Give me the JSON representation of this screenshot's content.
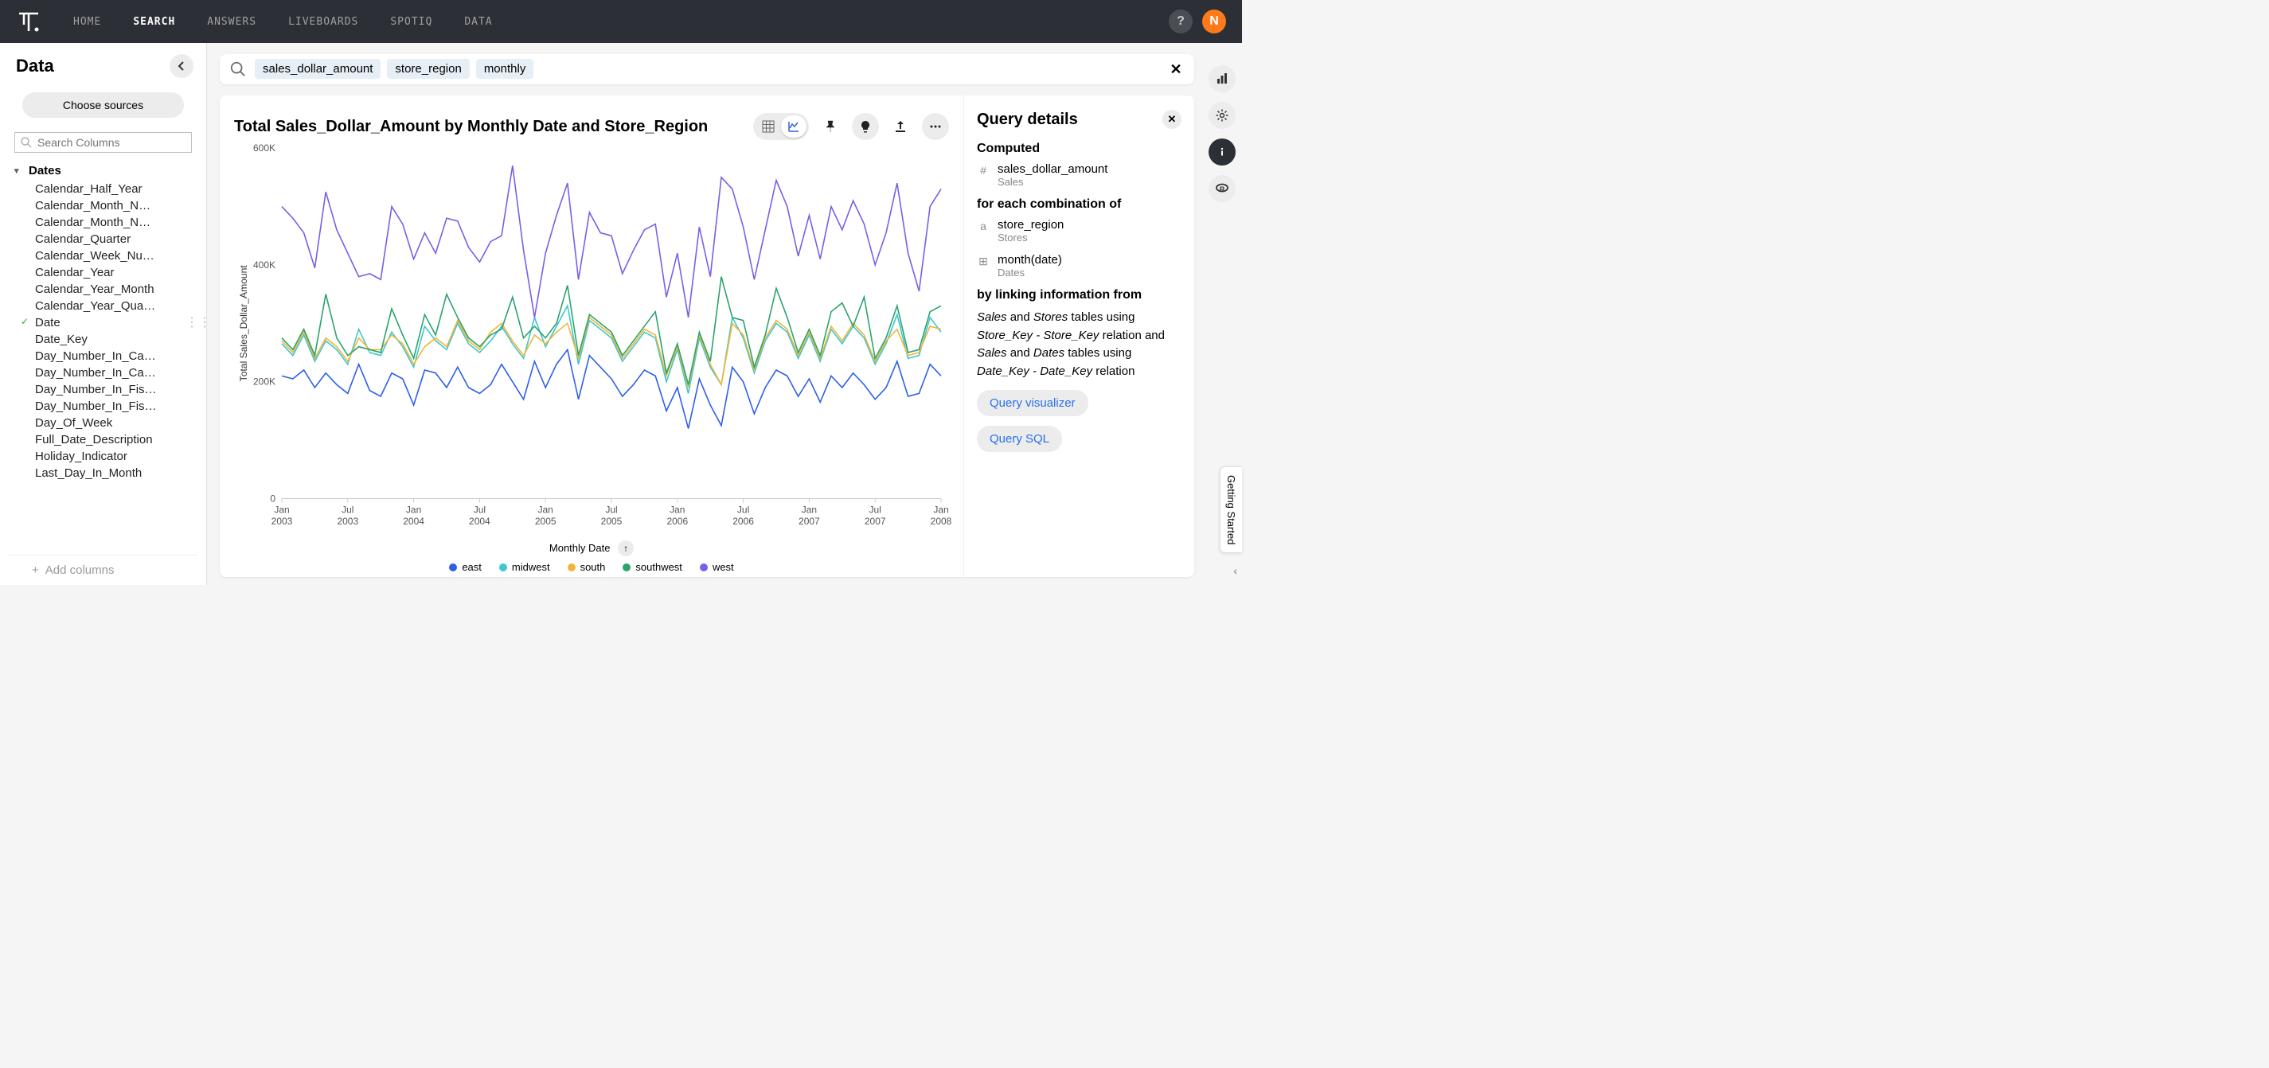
{
  "nav": {
    "items": [
      "HOME",
      "SEARCH",
      "ANSWERS",
      "LIVEBOARDS",
      "SPOTIQ",
      "DATA"
    ],
    "active": 1,
    "help": "?",
    "avatar_initial": "N",
    "avatar_bg": "#ff7a1a"
  },
  "sidebar": {
    "title": "Data",
    "choose_sources": "Choose sources",
    "search_placeholder": "Search Columns",
    "group_label": "Dates",
    "items": [
      {
        "label": "Calendar_Half_Year"
      },
      {
        "label": "Calendar_Month_N…"
      },
      {
        "label": "Calendar_Month_N…"
      },
      {
        "label": "Calendar_Quarter"
      },
      {
        "label": "Calendar_Week_Nu…"
      },
      {
        "label": "Calendar_Year"
      },
      {
        "label": "Calendar_Year_Month"
      },
      {
        "label": "Calendar_Year_Qua…"
      },
      {
        "label": "Date",
        "checked": true
      },
      {
        "label": "Date_Key"
      },
      {
        "label": "Day_Number_In_Ca…"
      },
      {
        "label": "Day_Number_In_Ca…"
      },
      {
        "label": "Day_Number_In_Fis…"
      },
      {
        "label": "Day_Number_In_Fis…"
      },
      {
        "label": "Day_Of_Week"
      },
      {
        "label": "Full_Date_Description"
      },
      {
        "label": "Holiday_Indicator"
      },
      {
        "label": "Last_Day_In_Month"
      }
    ],
    "add_columns": "Add columns"
  },
  "search": {
    "pills": [
      "sales_dollar_amount",
      "store_region",
      "monthly"
    ]
  },
  "chart": {
    "title": "Total Sales_Dollar_Amount by Monthly Date and Store_Region",
    "type": "line",
    "y_label": "Total Sales_Dollar_Amount",
    "x_label": "Monthly Date",
    "ylim": [
      0,
      600000
    ],
    "ytick_values": [
      0,
      200000,
      400000,
      600000
    ],
    "ytick_labels": [
      "0",
      "200K",
      "400K",
      "600K"
    ],
    "x_categories": [
      "Jan 2003",
      "Jul 2003",
      "Jan 2004",
      "Jul 2004",
      "Jan 2005",
      "Jul 2005",
      "Jan 2006",
      "Jul 2006",
      "Jan 2007",
      "Jul 2007",
      "Jan 2008"
    ],
    "x_count": 61,
    "legend": [
      {
        "name": "east",
        "color": "#2e5fe8"
      },
      {
        "name": "midwest",
        "color": "#3fc7d0"
      },
      {
        "name": "south",
        "color": "#f0b63a"
      },
      {
        "name": "southwest",
        "color": "#2ba46b"
      },
      {
        "name": "west",
        "color": "#7a5fe8"
      }
    ],
    "series": {
      "east": [
        210,
        205,
        220,
        190,
        215,
        195,
        180,
        230,
        185,
        175,
        215,
        205,
        160,
        220,
        215,
        190,
        225,
        190,
        180,
        195,
        230,
        200,
        170,
        235,
        190,
        230,
        255,
        170,
        245,
        225,
        205,
        175,
        195,
        220,
        210,
        150,
        190,
        120,
        205,
        160,
        125,
        225,
        200,
        145,
        190,
        220,
        210,
        175,
        205,
        165,
        210,
        190,
        215,
        195,
        170,
        190,
        235,
        175,
        180,
        230,
        210
      ],
      "midwest": [
        265,
        245,
        280,
        235,
        270,
        255,
        230,
        290,
        250,
        245,
        285,
        260,
        225,
        295,
        270,
        255,
        300,
        265,
        250,
        270,
        295,
        265,
        240,
        310,
        260,
        295,
        330,
        230,
        305,
        290,
        275,
        235,
        260,
        285,
        275,
        200,
        255,
        180,
        275,
        225,
        195,
        310,
        275,
        215,
        270,
        300,
        285,
        240,
        280,
        235,
        290,
        265,
        295,
        275,
        230,
        265,
        315,
        240,
        245,
        310,
        285
      ],
      "south": [
        270,
        250,
        285,
        240,
        275,
        260,
        235,
        275,
        255,
        255,
        280,
        265,
        230,
        260,
        275,
        260,
        305,
        270,
        255,
        285,
        300,
        270,
        245,
        280,
        265,
        285,
        300,
        240,
        310,
        295,
        280,
        240,
        265,
        290,
        280,
        210,
        260,
        190,
        280,
        230,
        195,
        300,
        280,
        220,
        275,
        305,
        290,
        245,
        285,
        240,
        295,
        270,
        300,
        280,
        235,
        270,
        290,
        245,
        250,
        295,
        290
      ],
      "southwest": [
        275,
        255,
        290,
        245,
        350,
        275,
        245,
        260,
        255,
        250,
        325,
        280,
        240,
        315,
        280,
        350,
        310,
        275,
        260,
        280,
        290,
        345,
        275,
        295,
        275,
        300,
        365,
        245,
        315,
        300,
        285,
        245,
        270,
        295,
        320,
        215,
        265,
        195,
        285,
        235,
        380,
        310,
        305,
        225,
        280,
        360,
        310,
        250,
        290,
        245,
        320,
        335,
        295,
        345,
        240,
        275,
        330,
        250,
        255,
        320,
        330
      ],
      "west": [
        500,
        480,
        455,
        395,
        525,
        460,
        420,
        380,
        385,
        375,
        500,
        470,
        410,
        455,
        420,
        480,
        475,
        430,
        405,
        440,
        450,
        570,
        425,
        310,
        420,
        485,
        540,
        375,
        490,
        455,
        450,
        385,
        425,
        460,
        470,
        345,
        420,
        310,
        465,
        380,
        550,
        530,
        465,
        375,
        460,
        545,
        500,
        415,
        485,
        410,
        500,
        460,
        510,
        470,
        400,
        455,
        540,
        420,
        355,
        500,
        530
      ]
    },
    "colors": {
      "axis": "#555",
      "grid": "#e8e8e8",
      "bg": "#ffffff"
    },
    "line_width": 1.6
  },
  "query": {
    "title": "Query details",
    "computed_label": "Computed",
    "computed": {
      "name": "sales_dollar_amount",
      "sub": "Sales",
      "icon": "#"
    },
    "foreach_label": "for each combination of",
    "foreach": [
      {
        "name": "store_region",
        "sub": "Stores",
        "icon": "a"
      },
      {
        "name": "month(date)",
        "sub": "Dates",
        "icon": "⊞"
      }
    ],
    "linking_label": "by linking information from",
    "linking_html": "<i>Sales</i> and <i>Stores</i> tables using <i>Store_Key - Store_Key</i> relation and <i>Sales</i> and <i>Dates</i> tables using <i>Date_Key - Date_Key</i> relation",
    "btn_visualizer": "Query visualizer",
    "btn_sql": "Query SQL"
  },
  "getting_started": "Getting Started"
}
